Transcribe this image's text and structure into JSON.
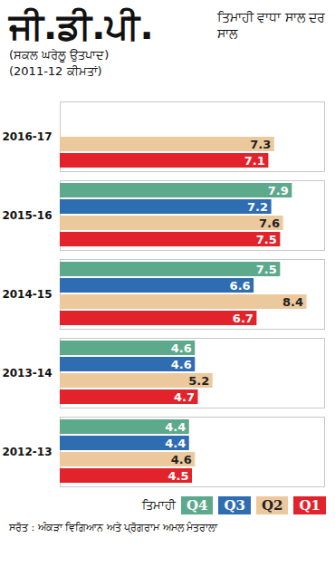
{
  "chart_data": {
    "type": "bar",
    "orientation": "horizontal",
    "title": "ਜੀ.ਡੀ.ਪੀ.",
    "subtitle": "ਤਿਮਾਹੀ ਵਾਧਾ ਸਾਲ ਦਰ ਸਾਲ",
    "notes": [
      "(ਸਕਲ ਘਰੇਲੂ ਉਤਪਾਦ)",
      "(2011-12 ਕੀਮਤਾਂ)"
    ],
    "source": "ਸਰੋਤ : ਅੰਕੜਾ ਵਿਗਿਆਨ ਅਤੇ ਪ੍ਰੋਗਰਾਮ ਅਮਲ ਮੰਤਰਾਲਾ",
    "legend_title": "ਤਿਮਾਹੀ",
    "legend": "bottom right",
    "categories": [
      "2016-17",
      "2015-16",
      "2014-15",
      "2013-14",
      "2012-13"
    ],
    "series": [
      {
        "name": "Q4",
        "color": "#5da98c",
        "values": [
          null,
          7.9,
          7.5,
          4.6,
          4.4
        ]
      },
      {
        "name": "Q3",
        "color": "#2f6db3",
        "values": [
          null,
          7.2,
          6.6,
          4.6,
          4.4
        ]
      },
      {
        "name": "Q2",
        "color": "#ecc99c",
        "values": [
          7.3,
          7.6,
          8.4,
          5.2,
          4.6
        ]
      },
      {
        "name": "Q1",
        "color": "#e3232b",
        "values": [
          7.1,
          7.5,
          6.7,
          4.7,
          4.5
        ]
      }
    ],
    "xlim": [
      0,
      9
    ],
    "data_labels": true,
    "tick_labels": "y",
    "grid": false
  }
}
